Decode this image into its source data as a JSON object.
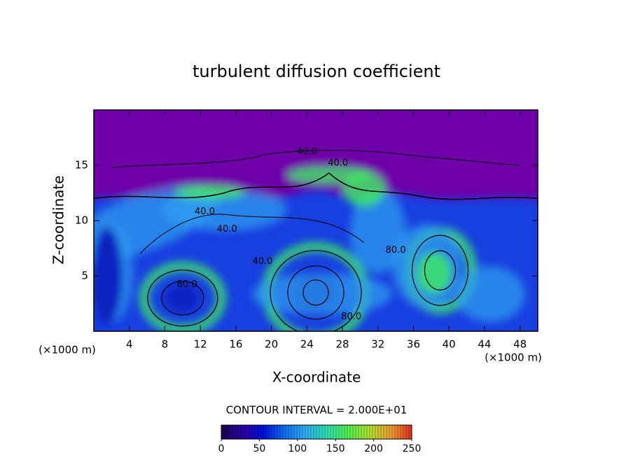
{
  "chart_data": {
    "type": "contour",
    "title": "turbulent diffusion coefficient",
    "xlabel": "X-coordinate",
    "ylabel": "Z-coordinate",
    "x_unit_label": "(×1000 m)",
    "y_unit_label": "(×1000 m)",
    "xlim": [
      0,
      50
    ],
    "xticks": [
      4,
      8,
      12,
      16,
      20,
      24,
      28,
      32,
      36,
      40,
      44,
      48
    ],
    "ylim": [
      0,
      20
    ],
    "yticks": [
      5,
      10,
      15
    ],
    "annotations": [
      {
        "text": "40.0",
        "x": 24,
        "y": 16.2
      },
      {
        "text": "40.0",
        "x": 27.5,
        "y": 15.2
      },
      {
        "text": "40.0",
        "x": 12.5,
        "y": 10.8
      },
      {
        "text": "40.0",
        "x": 15,
        "y": 9.2
      },
      {
        "text": "40.0",
        "x": 19,
        "y": 6.3
      },
      {
        "text": "80.0",
        "x": 10.5,
        "y": 4.2
      },
      {
        "text": "80.0",
        "x": 34,
        "y": 7.3
      },
      {
        "text": "80.0",
        "x": 29,
        "y": 1.3
      }
    ],
    "contour_interval_label": "CONTOUR INTERVAL = 2.000E+01",
    "colorbar": {
      "lim": [
        0,
        250
      ],
      "ticks": [
        0,
        50,
        100,
        150,
        200,
        250
      ],
      "colors": [
        "#1a0050",
        "#2a00a0",
        "#0010e0",
        "#1070f0",
        "#30b0f0",
        "#30e0b0",
        "#50f050",
        "#b0e030",
        "#f0a030",
        "#e03020"
      ]
    },
    "field_colors": {
      "upper": "#6e00a8",
      "base": "#1840e0",
      "deep": "#0a20c0",
      "mid": "#30a0f0",
      "high": "#40f060"
    }
  }
}
